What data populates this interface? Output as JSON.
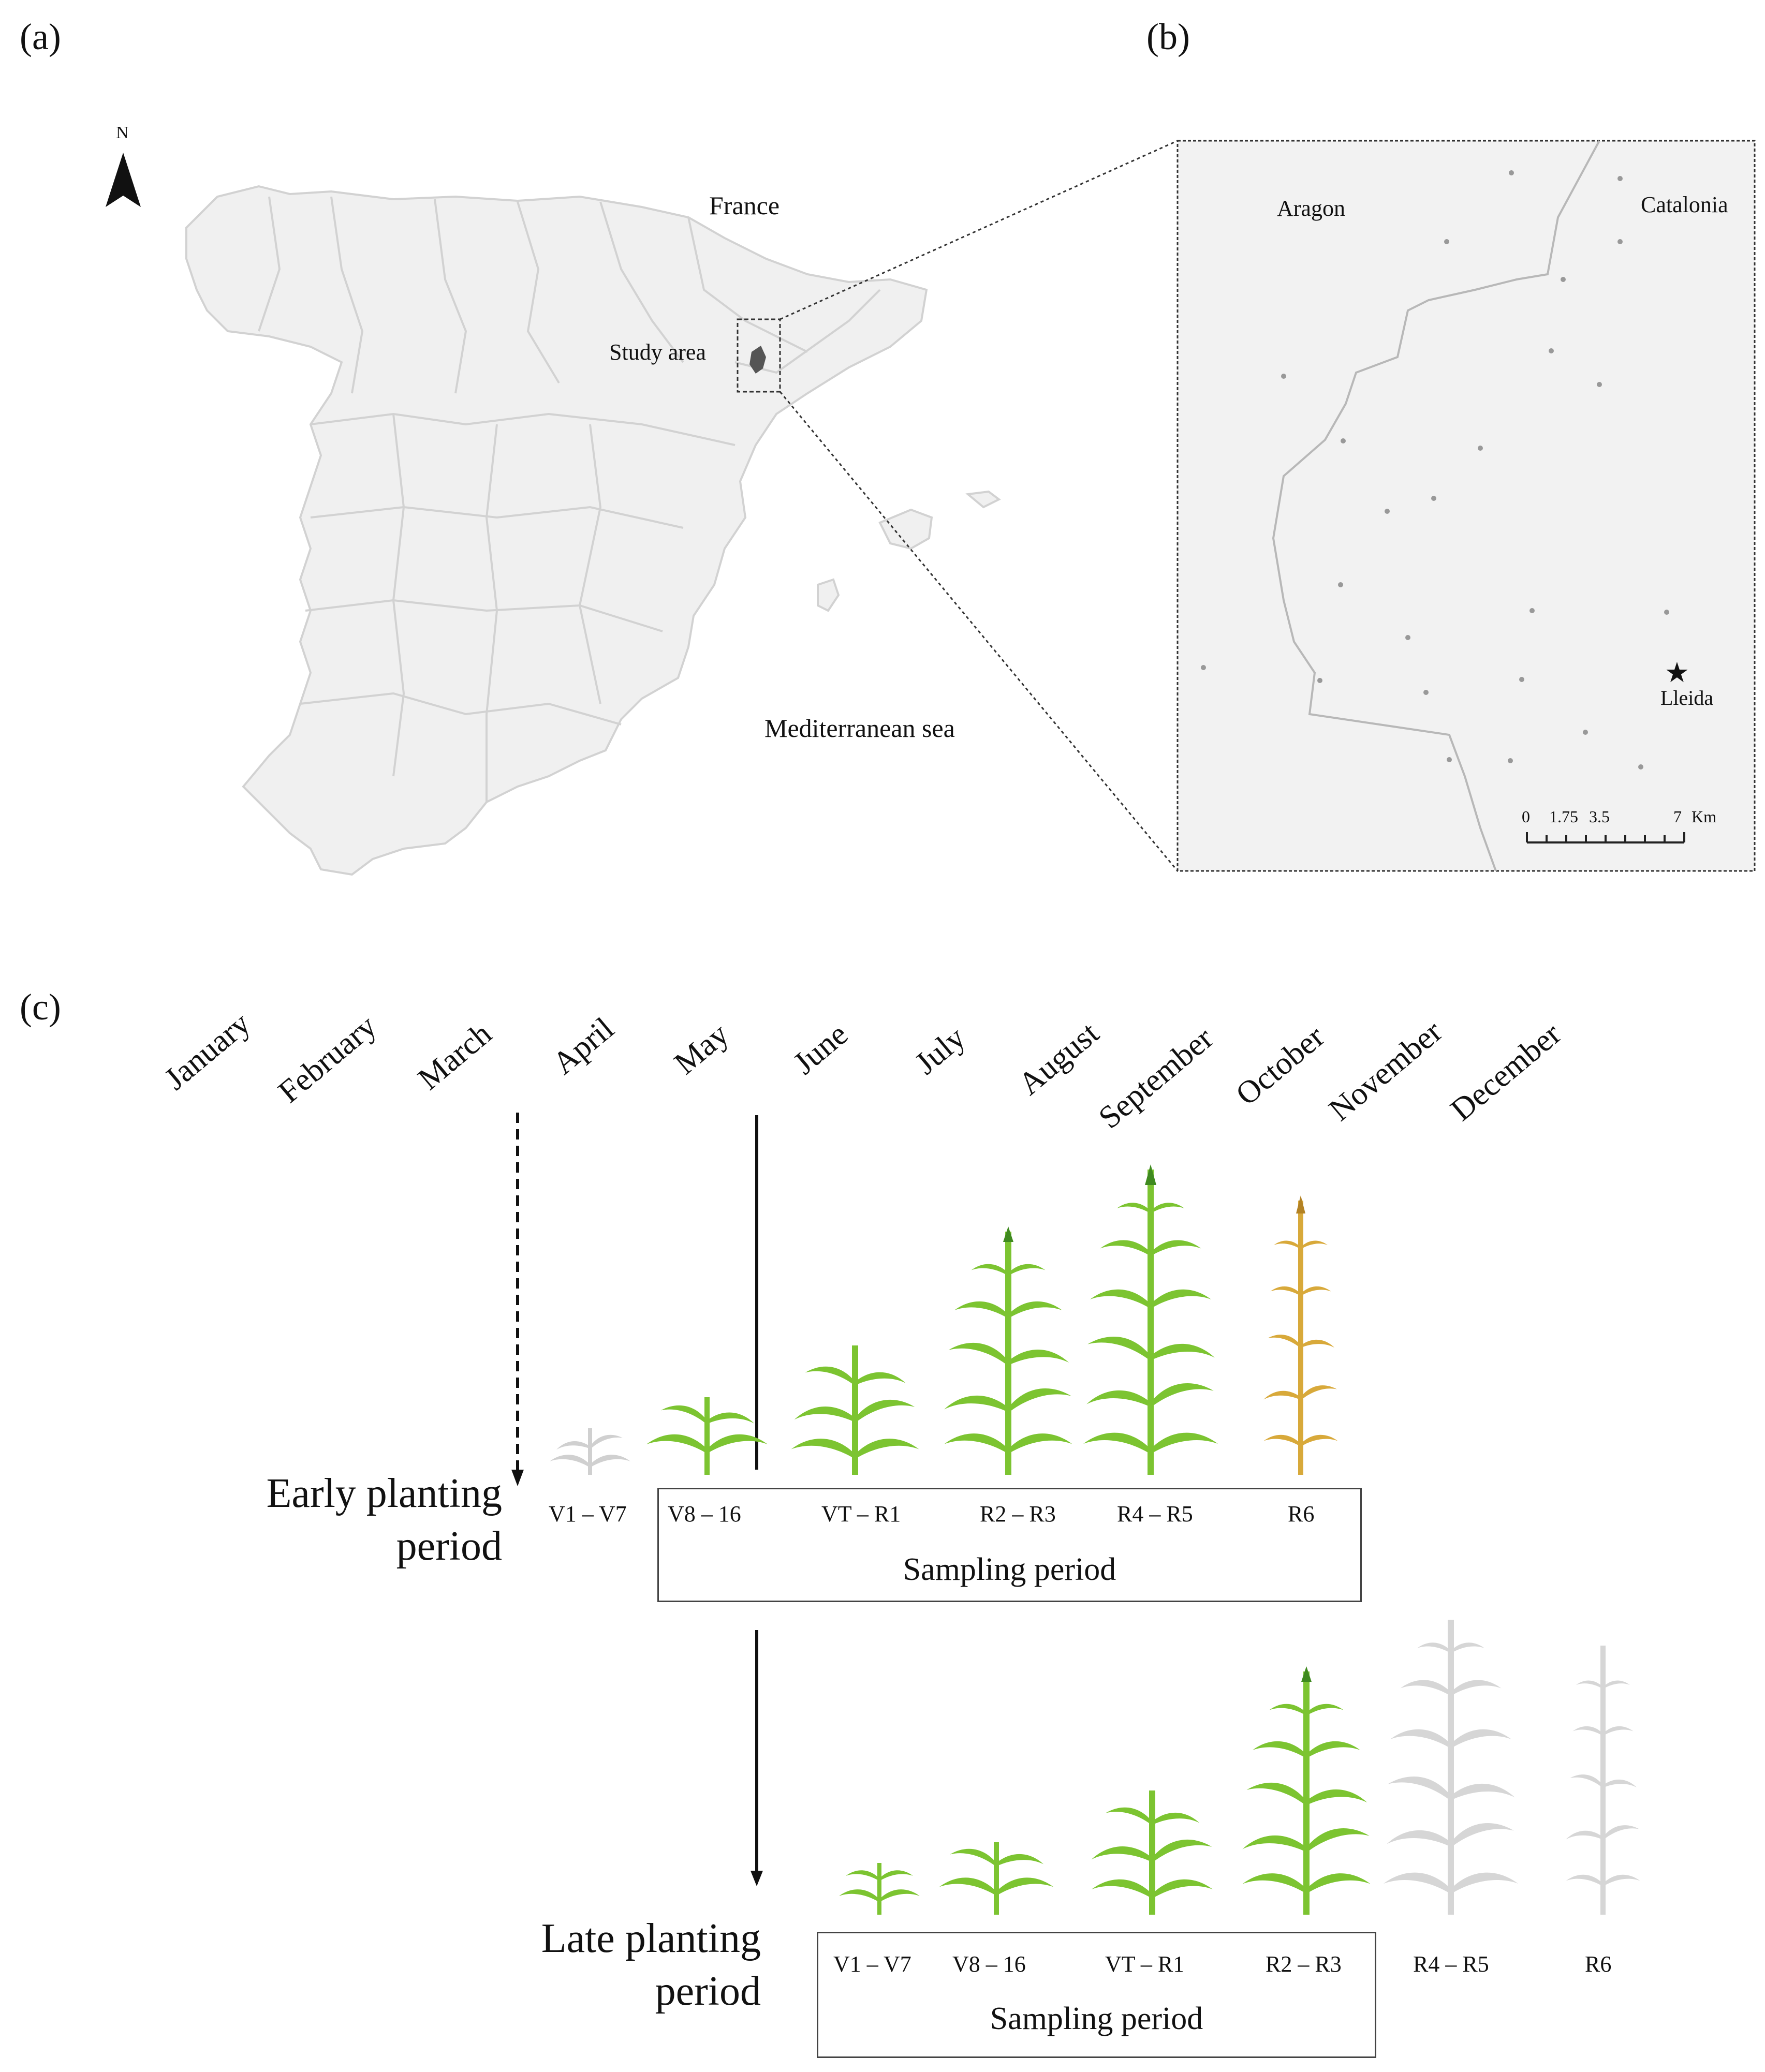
{
  "panels": {
    "a": "(a)",
    "b": "(b)",
    "c": "(c)"
  },
  "map_a": {
    "north": "N",
    "france": "France",
    "study_area": "Study area",
    "sea": "Mediterranean sea"
  },
  "map_b": {
    "aragon": "Aragon",
    "catalonia": "Catalonia",
    "city": "Lleida",
    "scale_ticks": [
      "0",
      "1.75",
      "3.5",
      "7"
    ],
    "scale_unit": "Km"
  },
  "timeline": {
    "months": [
      "January",
      "February",
      "March",
      "April",
      "May",
      "June",
      "July",
      "August",
      "September",
      "October",
      "November",
      "December"
    ],
    "early": {
      "label_line1": "Early planting",
      "label_line2": "period",
      "stages": [
        "V1 – V7",
        "V8 – 16",
        "VT – R1",
        "R2 – R3",
        "R4 – R5",
        "R6"
      ],
      "sampling": "Sampling period"
    },
    "late": {
      "label_line1": "Late planting",
      "label_line2": "period",
      "stages": [
        "V1 – V7",
        "V8 – 16",
        "VT – R1",
        "R2 – R3",
        "R4 – R5",
        "R6"
      ],
      "sampling": "Sampling period"
    }
  },
  "colors": {
    "map_fill": "#f0f0f0",
    "border": "#cfcfcf",
    "plant_green": "#7cc431",
    "plant_dark": "#3f8a1f",
    "plant_dry": "#d8a93a",
    "plant_gray": "#d6d6d6"
  }
}
